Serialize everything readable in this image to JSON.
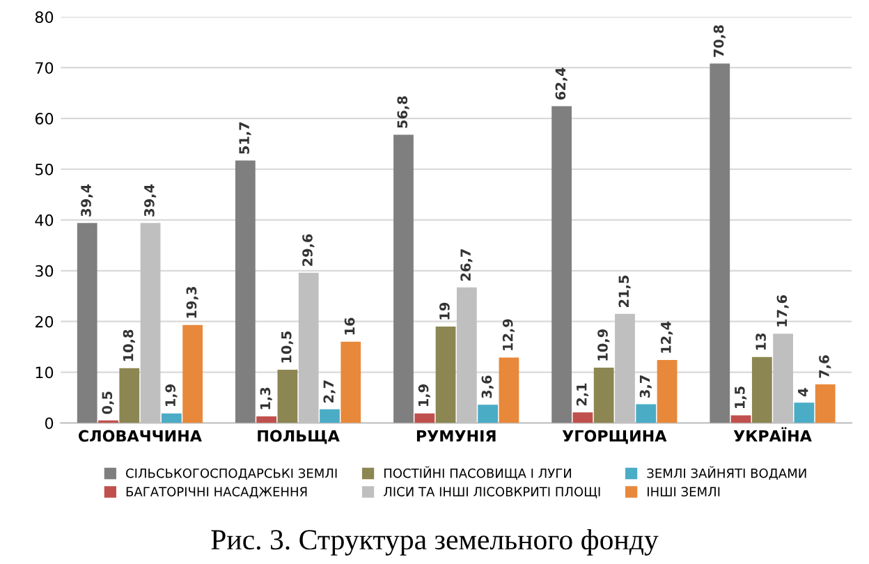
{
  "chart_data": {
    "type": "bar",
    "categories": [
      "СЛОВАЧЧИНА",
      "ПОЛЬЩА",
      "РУМУНІЯ",
      "УГОРЩИНА",
      "УКРАЇНА"
    ],
    "ylim": [
      0,
      80
    ],
    "yticks": [
      0,
      10,
      20,
      30,
      40,
      50,
      60,
      70,
      80
    ],
    "grid": "y",
    "legend": "bottom",
    "annotations": [
      "Рис. 3. Структура земельного фонду"
    ],
    "series": [
      {
        "name": "СІЛЬСЬКОГОСПОДАРСЬКІ ЗЕМЛІ",
        "color": "#7f7f7f",
        "values": [
          39.4,
          51.7,
          56.8,
          62.4,
          70.8
        ],
        "value_labels": [
          "39,4",
          "51,7",
          "56,8",
          "62,4",
          "70,8"
        ]
      },
      {
        "name": "БАГАТОРІЧНІ НАСАДЖЕННЯ",
        "color": "#c0504d",
        "values": [
          0.5,
          1.3,
          1.9,
          2.1,
          1.5
        ],
        "value_labels": [
          "0,5",
          "1,3",
          "1,9",
          "2,1",
          "1,5"
        ]
      },
      {
        "name": "ПОСТІЙНІ ПАСОВИЩА І ЛУГИ",
        "color": "#8c8652",
        "values": [
          10.8,
          10.5,
          19,
          10.9,
          13
        ],
        "value_labels": [
          "10,8",
          "10,5",
          "19",
          "10,9",
          "13"
        ]
      },
      {
        "name": "ЛІСИ ТА ІНШІ ЛІСОВКРИТІ ПЛОЩІ",
        "color": "#bfbfbf",
        "values": [
          39.4,
          29.6,
          26.7,
          21.5,
          17.6
        ],
        "value_labels": [
          "39,4",
          "29,6",
          "26,7",
          "21,5",
          "17,6"
        ]
      },
      {
        "name": "ЗЕМЛІ ЗАЙНЯТІ ВОДАМИ",
        "color": "#4bacc6",
        "values": [
          1.9,
          2.7,
          3.6,
          3.7,
          4
        ],
        "value_labels": [
          "1,9",
          "2,7",
          "3,6",
          "3,7",
          "4"
        ]
      },
      {
        "name": "ІНШІ ЗЕМЛІ",
        "color": "#e8883a",
        "values": [
          19.3,
          16,
          12.9,
          12.4,
          7.6
        ],
        "value_labels": [
          "19,3",
          "16",
          "12,9",
          "12,4",
          "7,6"
        ]
      }
    ]
  }
}
